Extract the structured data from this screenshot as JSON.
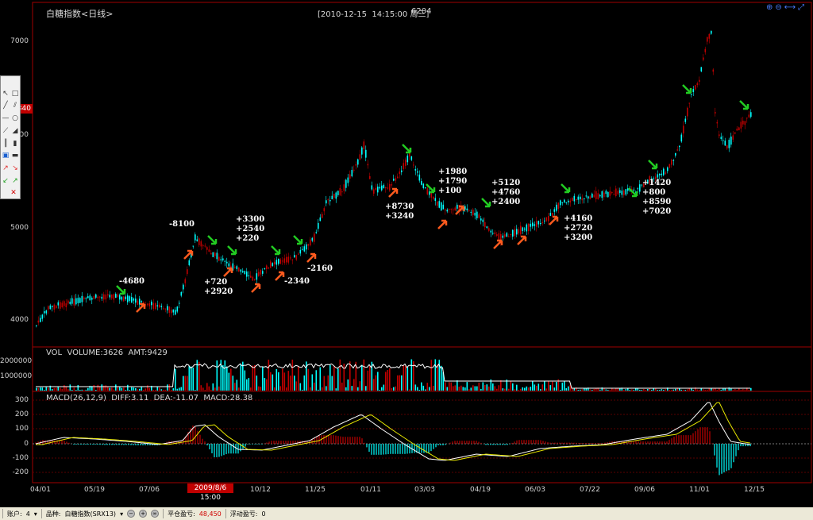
{
  "header": {
    "title": "白糖指数<日线>",
    "datetime": "[2010-12-15  14:15:00 周三]",
    "code": "6204",
    "toolbar_icons": [
      "zoom-in-icon",
      "zoom-out-icon",
      "arrows-horizontal-icon",
      "restore-icon"
    ]
  },
  "price_axis": {
    "labels": [
      "7000",
      "5000",
      "4000"
    ],
    "partial_label": "000",
    "marker_value": "340"
  },
  "annotations": {
    "a1": "-4680",
    "a2": "-8100",
    "a3": "+720\n+2920",
    "a4": "+3300\n+2540\n+220",
    "a5": "-2340",
    "a6": "-2160",
    "a7": "+8730\n+3240",
    "a8": "+1980\n+1790\n+100",
    "a9": "+5120\n+4760\n+2400",
    "a10": "+4160\n+2720\n+3200",
    "a11": "+1420\n+800\n+8590\n+7020"
  },
  "volume_panel": {
    "header": "VOL  VOLUME:3626  AMT:9429",
    "labels": [
      "2000000",
      "1000000"
    ]
  },
  "macd_panel": {
    "header": "MACD(26,12,9)  DIFF:3.11  DEA:-11.07  MACD:28.38",
    "labels": [
      "300",
      "200",
      "100",
      "0",
      "-100",
      "-200"
    ]
  },
  "x_axis": {
    "labels": [
      "04/01",
      "05/19",
      "07/06",
      "10/12",
      "11/25",
      "01/11",
      "03/03",
      "04/19",
      "06/03",
      "07/22",
      "09/06",
      "11/01",
      "12/15"
    ],
    "cursor_date": "2009/8/6 15:00"
  },
  "statusbar": {
    "account_label": "账户:",
    "account_value": "4",
    "product_label": "品种:",
    "product_value": "白糖指数(SRX13)",
    "pnl_label": "平仓盈亏:",
    "pnl_value": "48,450",
    "float_label": "浮动盈亏:",
    "float_value": "0"
  },
  "toolbox_icons": [
    "pointer-icon",
    "rectangle-icon",
    "line-icon",
    "parallel-lines-icon",
    "horizontal-line-icon",
    "ellipse-icon",
    "fan-icon",
    "triangle-icon",
    "vertical-lines-icon",
    "bar-icon",
    "screenshot-icon",
    "save-icon",
    "buy-arrow-icon",
    "sell-arrow-icon",
    "buy-close-icon",
    "sell-close-icon",
    "delete-icon"
  ],
  "colors": {
    "up": "#c00000",
    "down": "#00ffff",
    "border": "#a00000",
    "buy_arrow": "#ff5a1e",
    "sell_arrow": "#22cc22"
  }
}
